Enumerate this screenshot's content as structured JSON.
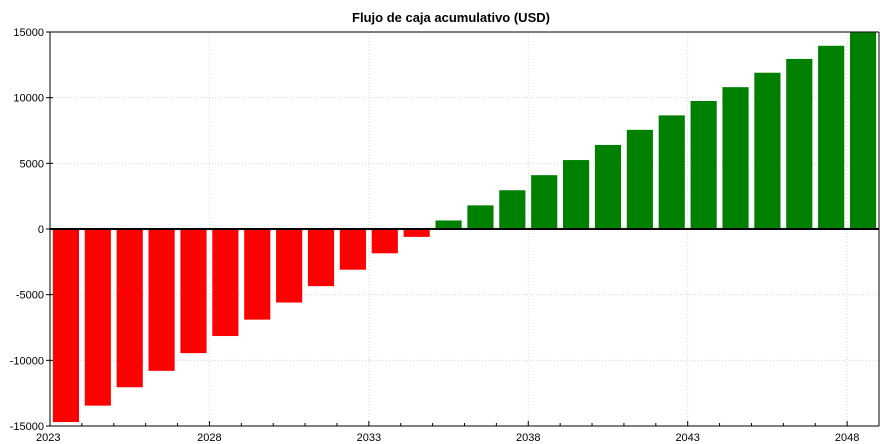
{
  "chart_data": {
    "type": "bar",
    "title": "Flujo de caja acumulativo (USD)",
    "xlabel": "",
    "ylabel": "",
    "x": [
      2024,
      2025,
      2026,
      2027,
      2028,
      2029,
      2030,
      2031,
      2032,
      2033,
      2034,
      2035,
      2036,
      2037,
      2038,
      2039,
      2040,
      2041,
      2042,
      2043,
      2044,
      2045,
      2046,
      2047,
      2048,
      2049
    ],
    "values": [
      -14700,
      -13450,
      -12050,
      -10800,
      -9450,
      -8150,
      -6900,
      -5600,
      -4350,
      -3100,
      -1850,
      -600,
      650,
      1800,
      2950,
      4100,
      5250,
      6400,
      7550,
      8650,
      9750,
      10800,
      11900,
      12950,
      13950,
      15100
    ],
    "xlim": [
      2023,
      2049
    ],
    "ylim": [
      -15000,
      15000
    ],
    "xticks": [
      "2023",
      "2028",
      "2033",
      "2038",
      "2043",
      "2048"
    ],
    "yticks": [
      "15000",
      "10000",
      "5000",
      "0",
      "-5000",
      "-10000",
      "-15000"
    ],
    "colors": {
      "negative": "#ff0000",
      "positive": "#008000"
    },
    "grid": true,
    "legend": "none"
  }
}
